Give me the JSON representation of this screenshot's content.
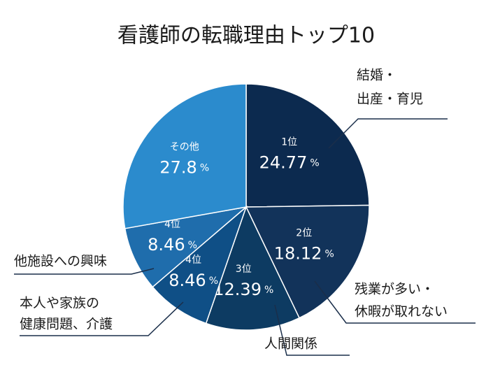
{
  "chart_data": {
    "type": "pie",
    "title": "看護師の転職理由トップ10",
    "categories": [
      [
        "結婚・",
        "出産・育児"
      ],
      [
        "残業が多い・",
        "休暇が取れない"
      ],
      [
        "人間関係"
      ],
      [
        "本人や家族の",
        "健康問題、介護"
      ],
      [
        "他施設への興味"
      ],
      [
        "その他"
      ]
    ],
    "rank_labels": [
      "1位",
      "2位",
      "3位",
      "4位",
      "4位",
      null
    ],
    "values": [
      24.77,
      18.12,
      12.39,
      8.46,
      8.46,
      27.8
    ],
    "unit": "%",
    "colors": [
      "#0c2a4f",
      "#12335a",
      "#0d3b62",
      "#0f4f86",
      "#1f6dac",
      "#2b8bcd"
    ]
  }
}
